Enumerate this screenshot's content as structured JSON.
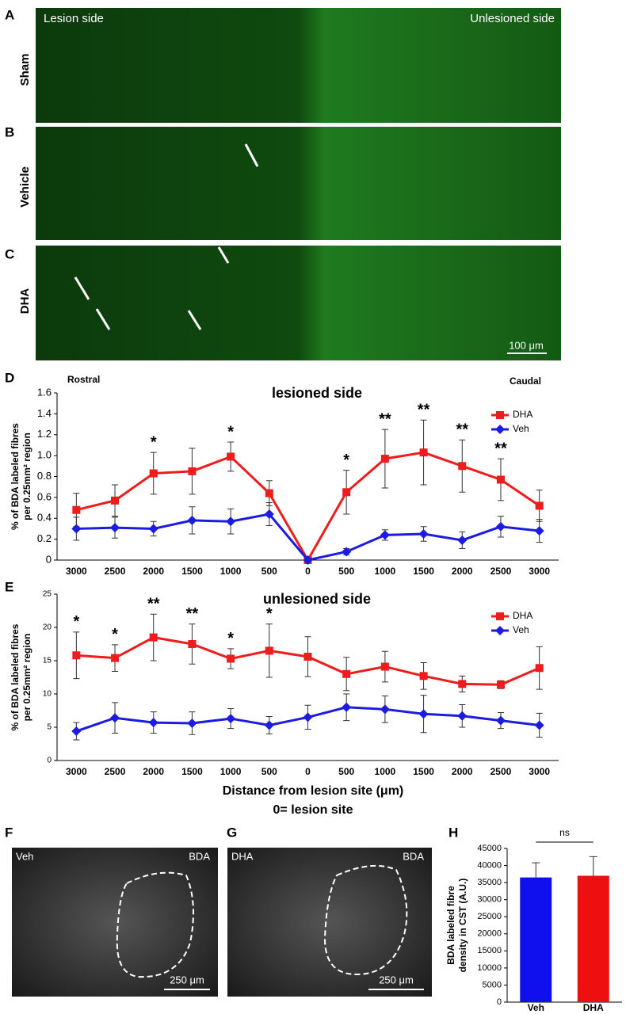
{
  "figure": {
    "A": {
      "letter": "A",
      "left_label": "Lesion side",
      "right_label": "Unlesioned side",
      "row_label": "Sham"
    },
    "B": {
      "letter": "B",
      "row_label": "Vehicle"
    },
    "C": {
      "letter": "C",
      "row_label": "DHA",
      "scale_bar": "100 μm"
    },
    "D": {
      "letter": "D"
    },
    "E": {
      "letter": "E"
    },
    "F": {
      "letter": "F",
      "condition": "Veh",
      "stain": "BDA",
      "scale_bar": "250 μm"
    },
    "G": {
      "letter": "G",
      "condition": "DHA",
      "stain": "BDA",
      "scale_bar": "250 μm"
    },
    "H": {
      "letter": "H"
    }
  },
  "chart_data": [
    {
      "type": "line",
      "title": "lesioned side",
      "left_note": "Rostral",
      "right_note": "Caudal",
      "ylabel": [
        "% of BDA labeled fibres",
        "per 0.25mm² region"
      ],
      "categories": [
        "3000",
        "2500",
        "2000",
        "1500",
        "1000",
        "500",
        "0",
        "500",
        "1000",
        "1500",
        "2000",
        "2500",
        "3000"
      ],
      "series": [
        {
          "name": "DHA",
          "color": "#ee1c1c",
          "marker": "square",
          "values": [
            0.48,
            0.57,
            0.83,
            0.85,
            0.99,
            0.64,
            0,
            0.65,
            0.97,
            1.03,
            0.9,
            0.77,
            0.52
          ],
          "errors": [
            0.16,
            0.15,
            0.2,
            0.22,
            0.14,
            0.12,
            0,
            0.21,
            0.28,
            0.31,
            0.25,
            0.2,
            0.15
          ]
        },
        {
          "name": "Veh",
          "color": "#1c1ce0",
          "marker": "diamond",
          "values": [
            0.3,
            0.31,
            0.3,
            0.38,
            0.37,
            0.44,
            0,
            0.08,
            0.24,
            0.25,
            0.19,
            0.32,
            0.28
          ],
          "errors": [
            0.11,
            0.1,
            0.07,
            0.13,
            0.12,
            0.11,
            0,
            0.03,
            0.05,
            0.07,
            0.08,
            0.1,
            0.11
          ]
        }
      ],
      "significance": [
        null,
        null,
        "*",
        null,
        "*",
        null,
        null,
        "*",
        "**",
        "**",
        "**",
        "**",
        null
      ],
      "ylim": [
        0,
        1.6
      ],
      "yticks": [
        0,
        0.2,
        0.4,
        0.6,
        0.8,
        {
          "value": 1,
          "label": "1.0"
        },
        1.2,
        1.4,
        1.6
      ],
      "legend": "upper right"
    },
    {
      "type": "line",
      "title": "unlesioned side",
      "ylabel": [
        "% of BDA labeled fibres",
        "per 0.25mm² region"
      ],
      "xlabel": [
        "Distance from lesion site (μm)",
        "0= lesion site"
      ],
      "categories": [
        "3000",
        "2500",
        "2000",
        "1500",
        "1000",
        "500",
        "0",
        "500",
        "1000",
        "1500",
        "2000",
        "2500",
        "3000"
      ],
      "series": [
        {
          "name": "DHA",
          "color": "#ee1c1c",
          "marker": "square",
          "values": [
            15.8,
            15.4,
            18.5,
            17.5,
            15.3,
            16.5,
            15.6,
            13.0,
            14.1,
            12.7,
            11.5,
            11.4,
            13.9
          ],
          "errors": [
            3.5,
            2.0,
            3.5,
            3.0,
            1.5,
            4.0,
            3.0,
            2.5,
            2.3,
            2.0,
            1.2,
            0.6,
            3.2
          ]
        },
        {
          "name": "Veh",
          "color": "#1c1ce0",
          "marker": "diamond",
          "values": [
            4.4,
            6.4,
            5.7,
            5.6,
            6.3,
            5.3,
            6.5,
            8.0,
            7.7,
            7.0,
            6.7,
            6.0,
            5.3
          ],
          "errors": [
            1.3,
            2.3,
            1.6,
            1.7,
            1.5,
            1.3,
            1.8,
            2.0,
            2.0,
            2.8,
            1.7,
            1.2,
            1.8
          ]
        }
      ],
      "significance": [
        "*",
        "*",
        "**",
        "**",
        "*",
        "*",
        null,
        null,
        null,
        null,
        null,
        null,
        null
      ],
      "ylim": [
        0,
        25
      ],
      "yticks": [
        0,
        5,
        10,
        15,
        20,
        25
      ],
      "legend": "upper right"
    },
    {
      "type": "bar",
      "ylabel": [
        "BDA labeled fibre",
        "density in CST (A.U.)"
      ],
      "categories": [
        "Veh",
        "DHA"
      ],
      "values": [
        36500,
        37000
      ],
      "errors": [
        4300,
        5600
      ],
      "colors": [
        "#1010ee",
        "#ee1010"
      ],
      "annotation": "ns",
      "ylim": [
        0,
        45000
      ],
      "yticks": [
        0,
        5000,
        10000,
        15000,
        20000,
        25000,
        30000,
        35000,
        40000,
        45000
      ]
    }
  ]
}
